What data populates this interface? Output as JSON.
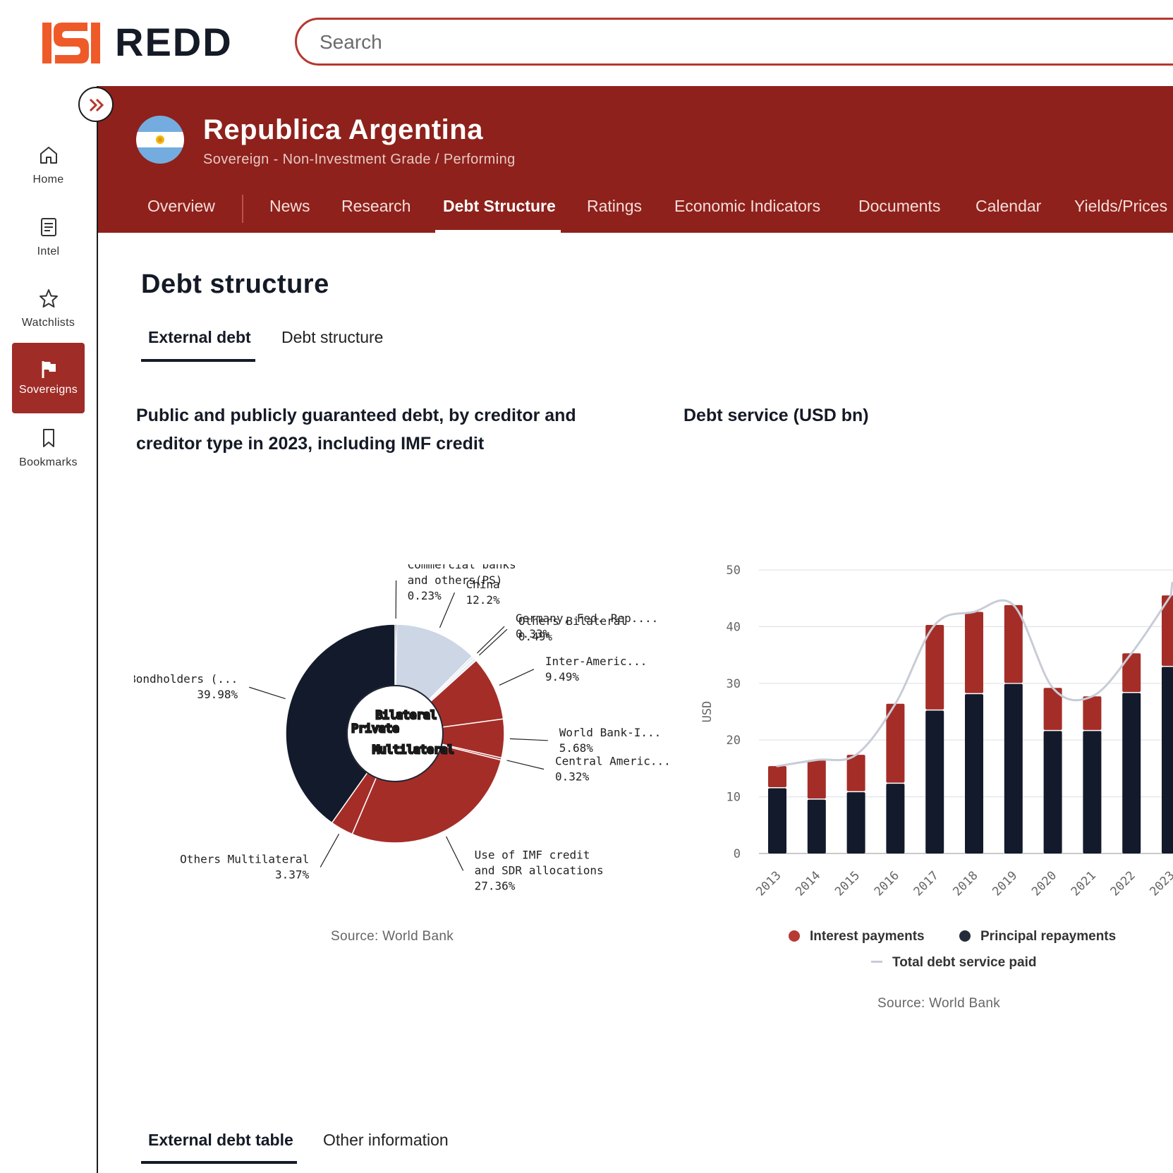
{
  "brand": {
    "name": "REDD",
    "accent": "#ef5a29"
  },
  "search": {
    "placeholder": "Search"
  },
  "sidebar": {
    "items": [
      {
        "label": "Home"
      },
      {
        "label": "Intel"
      },
      {
        "label": "Watchlists"
      },
      {
        "label": "Sovereigns"
      },
      {
        "label": "Bookmarks"
      }
    ]
  },
  "entity": {
    "name": "Republica Argentina",
    "subtitle": "Sovereign - Non-Investment Grade / Performing",
    "header_color": "#8e211b"
  },
  "nav": {
    "tabs": [
      "Overview",
      "News",
      "Research",
      "Debt Structure",
      "Ratings",
      "Economic Indicators",
      "Documents",
      "Calendar",
      "Yields/Prices"
    ],
    "active": "Debt Structure"
  },
  "page": {
    "title": "Debt structure",
    "tabs": [
      "External debt",
      "Debt structure"
    ],
    "bottom_tabs": [
      "External debt table",
      "Other information"
    ]
  },
  "pie_chart": {
    "title": "Public and publicly guaranteed debt, by creditor and creditor type in 2023, including IMF credit",
    "source": "Source: World Bank",
    "inner_labels": [
      "Bilateral",
      "Private",
      "Multilateral"
    ]
  },
  "bar_chart": {
    "title": "Debt service (USD bn)",
    "source": "Source: World Bank",
    "legend": [
      "Interest payments",
      "Principal repayments",
      "Total debt service paid"
    ]
  },
  "chart_data": [
    {
      "type": "pie",
      "title": "Public and publicly guaranteed debt, by creditor and creditor type in 2023, including IMF credit",
      "inner_ring": [
        {
          "name": "Private",
          "value": 40.21
        },
        {
          "name": "Bilateral",
          "value": 13.02
        },
        {
          "name": "Multilateral",
          "value": 46.22
        }
      ],
      "outer_ring": [
        {
          "name": "Commercial banks and others(PS)",
          "label": "Commercial banks\nand others(PS)",
          "value": 0.23,
          "display": "0.23%",
          "color": "#121a2b"
        },
        {
          "name": "China",
          "label": "China",
          "value": 12.2,
          "display": "12.2%",
          "color": "#cdd6e4"
        },
        {
          "name": "Germany, Fed. Rep.",
          "label": "Germany, Fed. Rep....",
          "value": 0.33,
          "display": "0.33%",
          "color": "#dfe5ee"
        },
        {
          "name": "Others Bilateral",
          "label": "Others Bilateral",
          "value": 0.49,
          "display": "0.49%",
          "color": "#e7ecf3"
        },
        {
          "name": "Inter-American",
          "label": "Inter-Americ...",
          "value": 9.49,
          "display": "9.49%",
          "color": "#a52d28"
        },
        {
          "name": "World Bank-I",
          "label": "World Bank-I...",
          "value": 5.68,
          "display": "5.68%",
          "color": "#a52d28"
        },
        {
          "name": "Central American",
          "label": "Central Americ...",
          "value": 0.32,
          "display": "0.32%",
          "color": "#a52d28"
        },
        {
          "name": "Use of IMF credit and SDR allocations",
          "label": "Use of IMF credit\nand SDR allocations",
          "value": 27.36,
          "display": "27.36%",
          "color": "#a52d28"
        },
        {
          "name": "Others Multilateral",
          "label": "Others Multilateral",
          "value": 3.37,
          "display": "3.37%",
          "color": "#a52d28"
        },
        {
          "name": "Bondholders",
          "label": "Bondholders (...",
          "value": 39.98,
          "display": "39.98%",
          "color": "#121a2b"
        }
      ]
    },
    {
      "type": "bar",
      "title": "Debt service (USD bn)",
      "ylabel": "USD",
      "ylim": [
        0,
        50
      ],
      "yticks": [
        0,
        10,
        20,
        30,
        40,
        50
      ],
      "categories": [
        "2013",
        "2014",
        "2015",
        "2016",
        "2017",
        "2018",
        "2019",
        "2020",
        "2021",
        "2022",
        "2023"
      ],
      "series": [
        {
          "name": "Principal repayments",
          "color": "#121a2b",
          "values": [
            11.5,
            9.5,
            10.8,
            12.3,
            25.2,
            28.1,
            29.9,
            21.6,
            21.6,
            28.3,
            32.9
          ]
        },
        {
          "name": "Interest payments",
          "color": "#a52d28",
          "values": [
            3.9,
            7.0,
            6.6,
            14.1,
            15.1,
            14.5,
            13.9,
            7.6,
            6.1,
            7.0,
            12.6
          ]
        },
        {
          "name": "Total debt service paid",
          "type": "line",
          "color": "#c8ccd6",
          "values": [
            15.4,
            16.5,
            17.4,
            26.4,
            40.3,
            42.6,
            43.8,
            29.2,
            27.7,
            35.3,
            45.5
          ]
        }
      ]
    }
  ]
}
